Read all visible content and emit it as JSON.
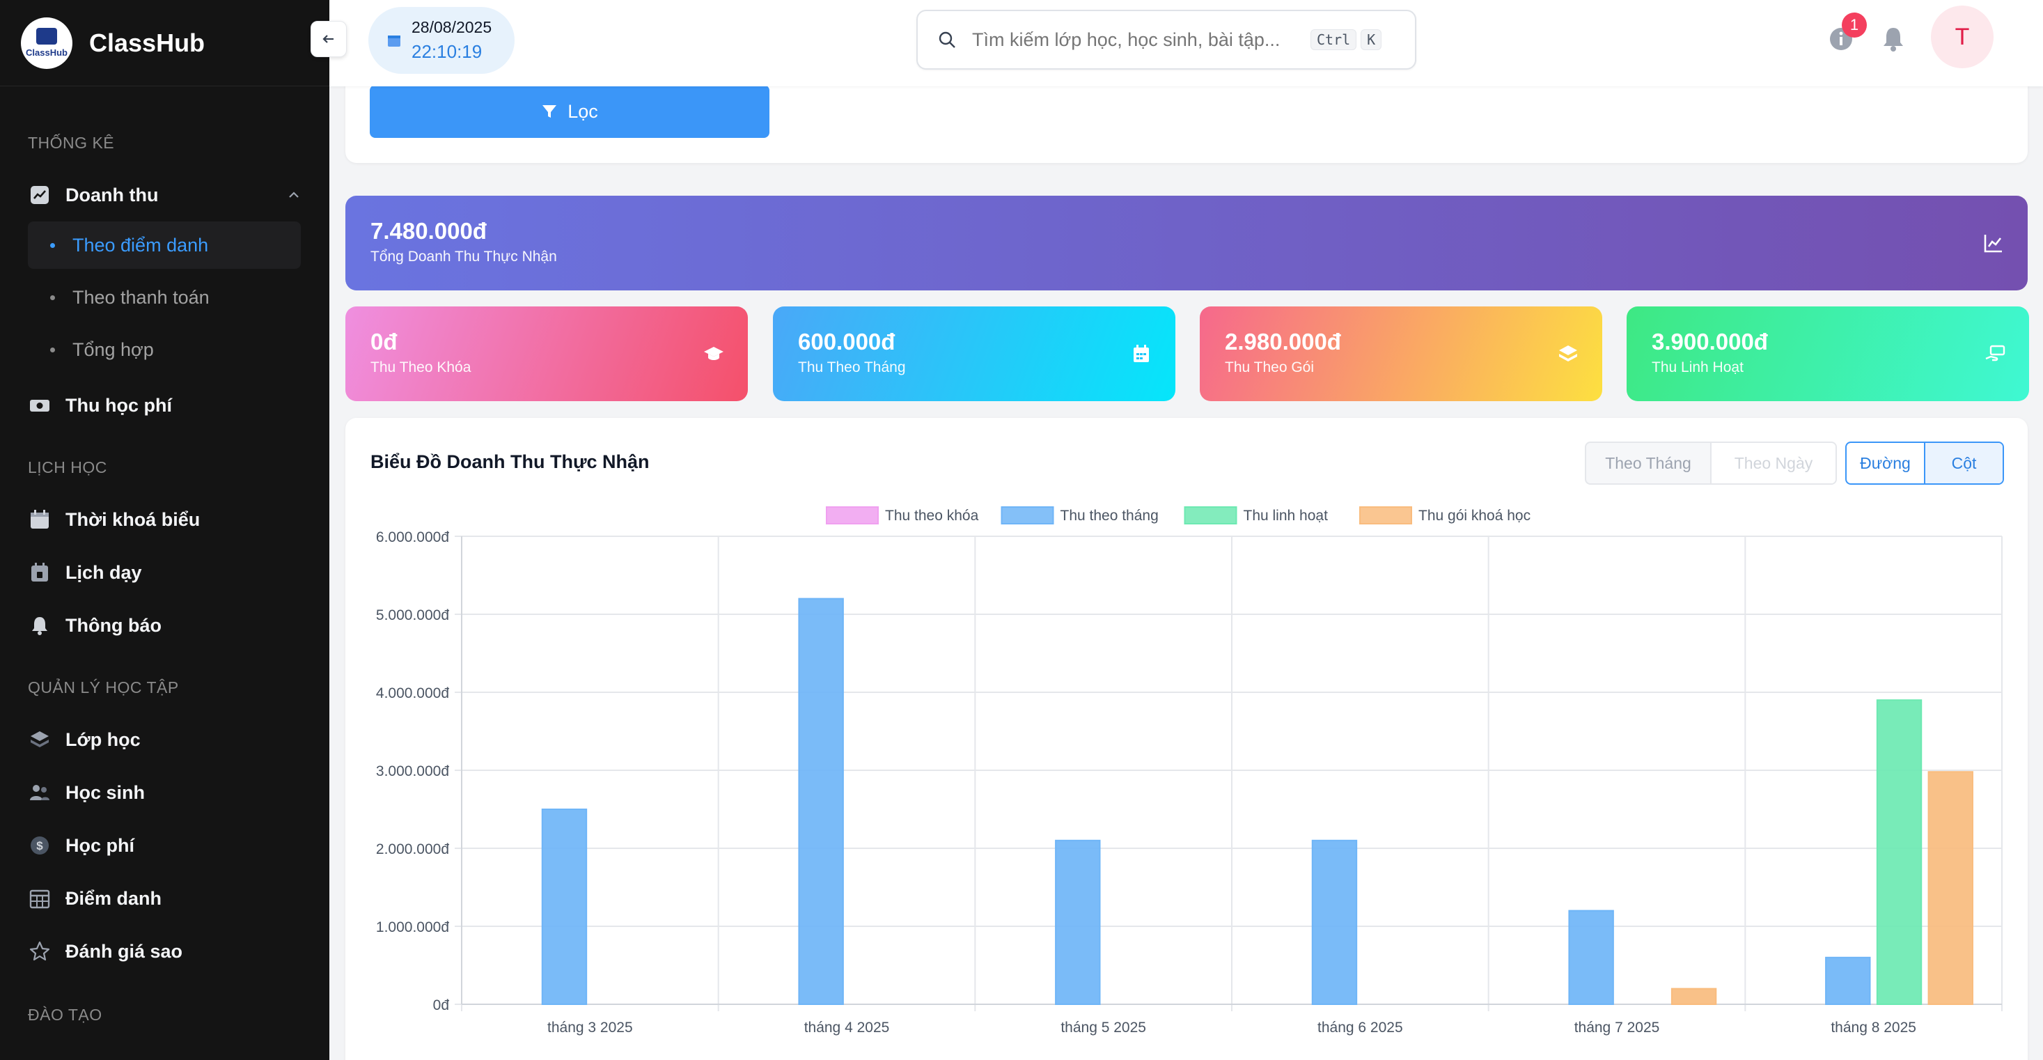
{
  "brand": {
    "name": "ClassHub",
    "logo_text": "ClassHub"
  },
  "sidebar": {
    "sections": [
      "THỐNG KÊ",
      "LỊCH HỌC",
      "QUẢN LÝ HỌC TẬP",
      "ĐÀO TẠO"
    ],
    "revenue": {
      "label": "Doanh thu",
      "icon": "chart-line-icon"
    },
    "revenue_sub": [
      "Theo điểm danh",
      "Theo thanh toán",
      "Tổng hợp"
    ],
    "tuition_collect": {
      "label": "Thu học phí",
      "icon": "money-icon"
    },
    "schedule_items": [
      {
        "label": "Thời khoá biểu",
        "icon": "calendar-icon"
      },
      {
        "label": "Lịch dạy",
        "icon": "calendar-day-icon"
      },
      {
        "label": "Thông báo",
        "icon": "bell-icon"
      }
    ],
    "learning_items": [
      {
        "label": "Lớp học",
        "icon": "layers-icon"
      },
      {
        "label": "Học sinh",
        "icon": "users-icon"
      },
      {
        "label": "Học phí",
        "icon": "dollar-icon"
      },
      {
        "label": "Điểm danh",
        "icon": "grid-calendar-icon"
      },
      {
        "label": "Đánh giá sao",
        "icon": "star-icon"
      }
    ]
  },
  "header": {
    "date": "28/08/2025",
    "time": "22:10:19",
    "search_placeholder": "Tìm kiếm lớp học, học sinh, bài tập...",
    "shortcut": [
      "Ctrl",
      "K"
    ],
    "notification_count": "1",
    "avatar_letter": "T"
  },
  "filter": {
    "button_label": "Lọc"
  },
  "summary": {
    "total": {
      "value": "7.480.000đ",
      "label": "Tổng Doanh Thu Thực Nhận"
    },
    "cards": [
      {
        "value": "0đ",
        "label": "Thu Theo Khóa",
        "icon": "graduation-cap-icon"
      },
      {
        "value": "600.000đ",
        "label": "Thu Theo Tháng",
        "icon": "calendar-icon"
      },
      {
        "value": "2.980.000đ",
        "label": "Thu Theo Gói",
        "icon": "layers-icon"
      },
      {
        "value": "3.900.000đ",
        "label": "Thu Linh Hoạt",
        "icon": "hand-money-icon"
      }
    ]
  },
  "chart_section": {
    "title": "Biểu Đồ Doanh Thu Thực Nhận",
    "period_toggle": [
      "Theo Tháng",
      "Theo Ngày"
    ],
    "type_toggle": [
      "Đường",
      "Cột"
    ]
  },
  "chart_data": {
    "type": "bar",
    "categories": [
      "tháng 3 2025",
      "tháng 4 2025",
      "tháng 5 2025",
      "tháng 6 2025",
      "tháng 7 2025",
      "tháng 8 2025"
    ],
    "series": [
      {
        "name": "Thu theo khóa",
        "color": "#f0a0f0",
        "values": [
          0,
          0,
          0,
          0,
          0,
          0
        ]
      },
      {
        "name": "Thu theo tháng",
        "color": "#6fb5f7",
        "values": [
          2500000,
          5200000,
          2100000,
          2100000,
          1200000,
          600000
        ]
      },
      {
        "name": "Thu linh hoạt",
        "color": "#6de9b2",
        "values": [
          0,
          0,
          0,
          0,
          0,
          3900000
        ]
      },
      {
        "name": "Thu gói khoá học",
        "color": "#f9bc7e",
        "values": [
          0,
          0,
          0,
          0,
          200000,
          2980000
        ]
      }
    ],
    "yticks": [
      "0đ",
      "1.000.000đ",
      "2.000.000đ",
      "3.000.000đ",
      "4.000.000đ",
      "5.000.000đ",
      "6.000.000đ"
    ],
    "ylim": [
      0,
      6000000
    ],
    "legend": "top-center",
    "grid": true
  }
}
